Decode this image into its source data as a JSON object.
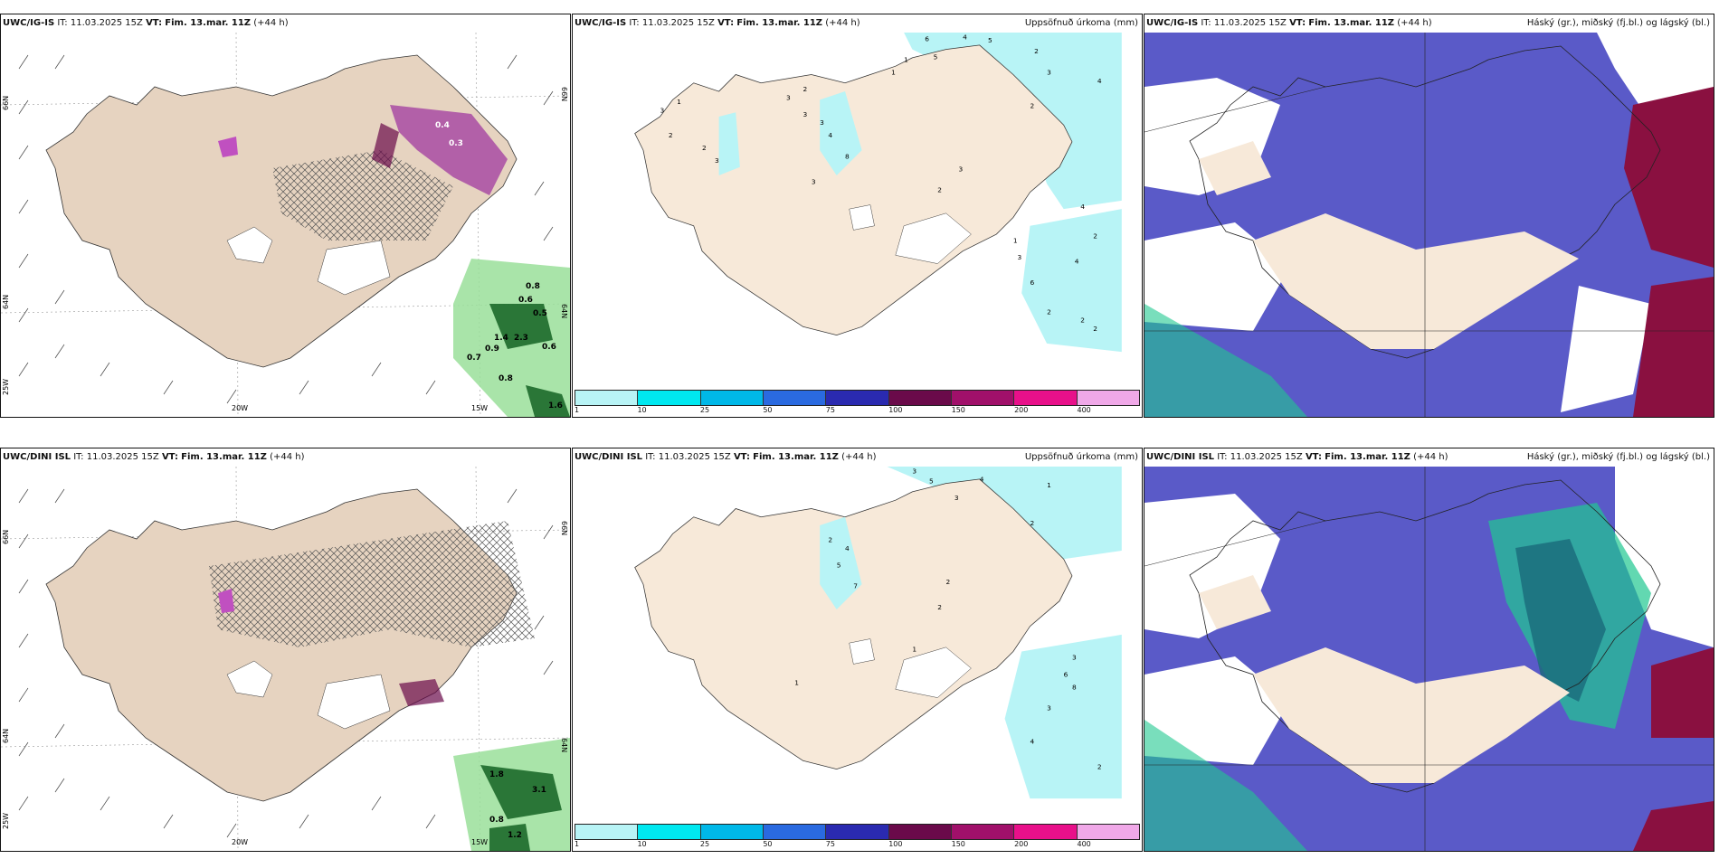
{
  "panels": [
    {
      "model": "UWC/IG-IS",
      "it_label": "IT:",
      "it_value": "11.03.2025 15Z",
      "vt_label": "VT:",
      "vt_value": "Fim. 13.mar. 11Z",
      "lead": "(+44 h)",
      "right_title": "",
      "lat_labels": [
        "66N",
        "64N",
        "25W"
      ],
      "lon_labels": [
        "20W",
        "15W"
      ],
      "rlat_labels": [
        "66N",
        "64N"
      ],
      "values": [
        "0.8",
        "0.6",
        "0.5",
        "1.4",
        "2.3",
        "0.9",
        "0.6",
        "0.7",
        "0.8",
        "1.6",
        "0.4",
        "0.3"
      ]
    },
    {
      "model": "UWC/IG-IS",
      "it_label": "IT:",
      "it_value": "11.03.2025 15Z",
      "vt_label": "VT:",
      "vt_value": "Fim. 13.mar. 11Z",
      "lead": "(+44 h)",
      "right_title": "Uppsöfnuð úrkoma (mm)",
      "values": [
        "6",
        "4",
        "5",
        "2",
        "1",
        "1",
        "5",
        "3",
        "2",
        "4",
        "3",
        "2",
        "1",
        "3",
        "2",
        "3",
        "3",
        "2",
        "3",
        "4",
        "8",
        "3",
        "2",
        "4",
        "2",
        "3",
        "4",
        "6",
        "3",
        "1",
        "2",
        "2",
        "2"
      ]
    },
    {
      "model": "UWC/IG-IS",
      "it_label": "IT:",
      "it_value": "11.03.2025 15Z",
      "vt_label": "VT:",
      "vt_value": "Fim. 13.mar. 11Z",
      "lead": "(+44 h)",
      "right_title": "Háský (gr.), miðský (fj.bl.) og lágský (bl.)"
    },
    {
      "model": "UWC/DINI ISL",
      "it_label": "IT:",
      "it_value": "11.03.2025 15Z",
      "vt_label": "VT:",
      "vt_value": "Fim. 13.mar. 11Z",
      "lead": "(+44 h)",
      "right_title": "",
      "lat_labels": [
        "66N",
        "64N",
        "25W"
      ],
      "lon_labels": [
        "20W",
        "15W"
      ],
      "rlat_labels": [
        "66N",
        "64N"
      ],
      "values": [
        "1.8",
        "3.1",
        "0.8",
        "1.2"
      ]
    },
    {
      "model": "UWC/DINI ISL",
      "it_label": "IT:",
      "it_value": "11.03.2025 15Z",
      "vt_label": "VT:",
      "vt_value": "Fim. 13.mar. 11Z",
      "lead": "(+44 h)",
      "right_title": "Uppsöfnuð úrkoma (mm)",
      "values": [
        "3",
        "5",
        "4",
        "1",
        "3",
        "2",
        "4",
        "2",
        "5",
        "7",
        "2",
        "3",
        "6",
        "8",
        "3",
        "4",
        "2",
        "1",
        "1",
        "2"
      ]
    },
    {
      "model": "UWC/DINI ISL",
      "it_label": "IT:",
      "it_value": "11.03.2025 15Z",
      "vt_label": "VT:",
      "vt_value": "Fim. 13.mar. 11Z",
      "lead": "(+44 h)",
      "right_title": "Háský (gr.), miðský (fj.bl.) og lágský (bl.)"
    }
  ],
  "colorbar": {
    "labels": [
      "1",
      "10",
      "25",
      "50",
      "75",
      "100",
      "150",
      "200",
      "400",
      ""
    ],
    "colors": [
      "#b8f4f6",
      "#00e8f0",
      "#00b8e8",
      "#2a6ae0",
      "#2a2ab0",
      "#6a0a4a",
      "#a0106a",
      "#e8108a",
      "#f0a8e8"
    ]
  },
  "colors": {
    "land": "#f7e9d9",
    "land_wind": "#e6d3c0",
    "snow_light": "#b8f4f6",
    "cloud_mid": "#5a5ac8",
    "cloud_low": "#2a4ae0",
    "cloud_high": "#8a1040",
    "cloud_green": "#20c890",
    "precip_green": "#9adf9a",
    "precip_dark": "#0a5a1a",
    "precip_purple": "#a03aa0"
  }
}
